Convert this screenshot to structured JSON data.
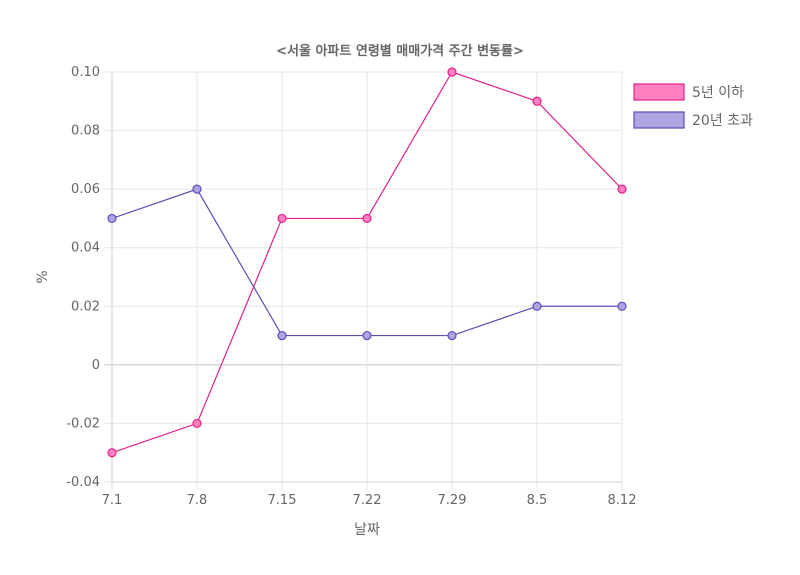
{
  "chart_data": {
    "type": "line",
    "title": "<서울 아파트 연령별 매매가격 주간 변동률>",
    "xlabel": "날짜",
    "ylabel": "%",
    "categories": [
      "7.1",
      "7.8",
      "7.15",
      "7.22",
      "7.29",
      "8.5",
      "8.12"
    ],
    "ylim": [
      -0.04,
      0.1
    ],
    "yticks": [
      -0.04,
      -0.02,
      0,
      0.02,
      0.04,
      0.06,
      0.08,
      0.1
    ],
    "ytick_labels": [
      "-0.04",
      "-0.02",
      "0",
      "0.02",
      "0.04",
      "0.06",
      "0.08",
      "0.10"
    ],
    "grid": true,
    "legend_position": "top-right",
    "series": [
      {
        "name": "5년 이하",
        "values": [
          -0.03,
          -0.02,
          0.05,
          0.05,
          0.1,
          0.09,
          0.06
        ],
        "line_color": "#e0218a",
        "fill_color": "#ff7fbf"
      },
      {
        "name": "20년 초과",
        "values": [
          0.05,
          0.06,
          0.01,
          0.01,
          0.01,
          0.02,
          0.02
        ],
        "line_color": "#5e4fb5",
        "fill_color": "#aca4e3"
      }
    ]
  }
}
